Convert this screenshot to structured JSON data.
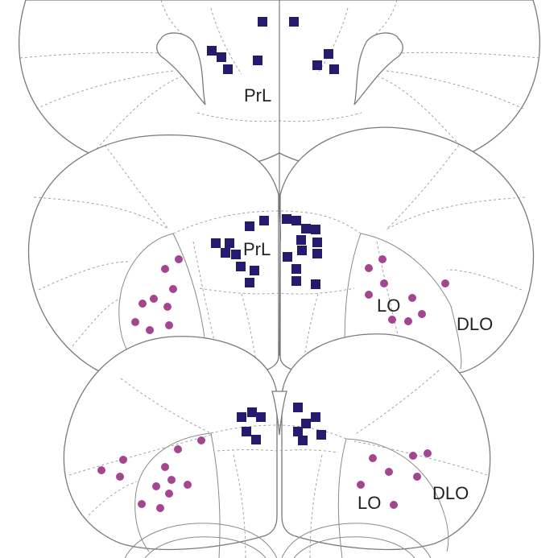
{
  "labels": {
    "top": {
      "prl": "PrL"
    },
    "middle": {
      "prl": "PrL",
      "lo": "LO",
      "dlo": "DLO"
    },
    "bottom": {
      "lo": "LO",
      "dlo": "DLO"
    }
  },
  "colors": {
    "square_marker": "#241b6e",
    "circle_marker": "#a3468f",
    "outline": "#7a7a7a",
    "background": "#ffffff"
  },
  "marker_shapes": {
    "square": "filled-square",
    "circle": "filled-circle"
  }
}
